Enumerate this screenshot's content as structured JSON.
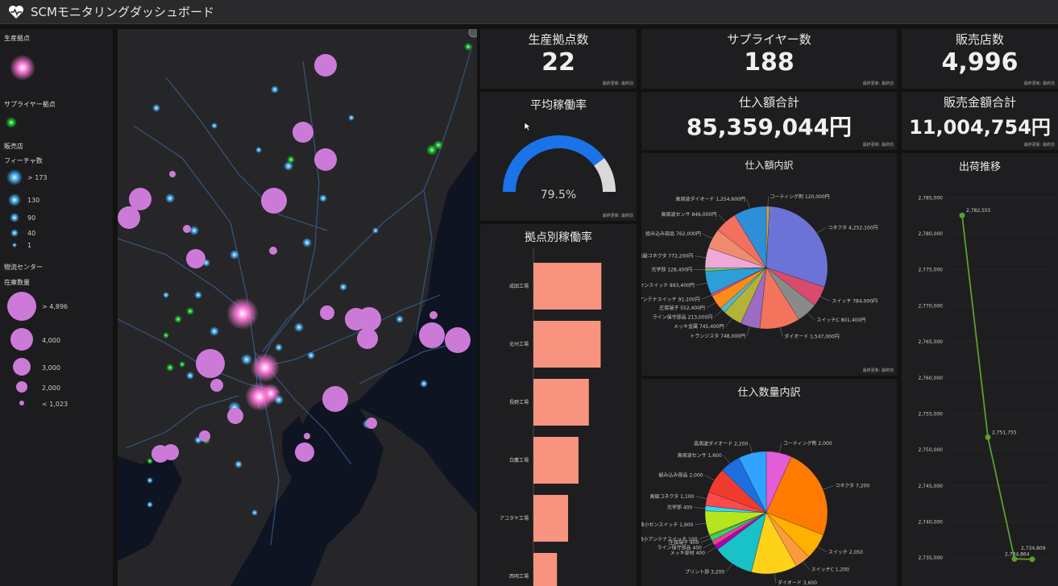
{
  "app": {
    "title": "SCMモニタリングダッシュボード"
  },
  "legend": {
    "production_title": "生産拠点",
    "supplier_title": "サプライヤー拠点",
    "store_title": "販売店",
    "feature_count_title": "フィーチャ数",
    "feature_counts": [
      "> 173",
      "130",
      "90",
      "40",
      "1"
    ],
    "dc_title": "物流センター",
    "stock_title": "在庫数量",
    "stock_counts": [
      "> 4,896",
      "4,000",
      "3,000",
      "2,000",
      "< 1,023"
    ]
  },
  "kpi": {
    "production_label": "生産拠点数",
    "production_value": "22",
    "supplier_label": "サプライヤー数",
    "supplier_value": "188",
    "store_label": "販売店数",
    "store_value": "4,996",
    "purchase_total_label": "仕入額合計",
    "purchase_total_value": "85,359,044円",
    "sales_total_label": "販売金額合計",
    "sales_total_value": "11,004,754円",
    "updated_label": "最終更新: 最終前"
  },
  "gauge": {
    "title": "平均稼働率",
    "value_text": "79.5%",
    "value": 0.795,
    "color": "#1a73e8",
    "rest_color": "#d9d9d9"
  },
  "bar": {
    "title": "拠点別稼働率",
    "color": "#f7937f"
  },
  "pie1": {
    "title": "仕入額内訳"
  },
  "pie2": {
    "title": "仕入数量内訳"
  },
  "line": {
    "title": "出荷推移",
    "color": "#5aa02c"
  },
  "chart_data": [
    {
      "type": "bar",
      "title": "拠点別稼働率",
      "categories": [
        "成田工場",
        "北州工場",
        "長野工場",
        "白鷹工場",
        "アユタヤ工場",
        "西明工場"
      ],
      "values": [
        0.98,
        0.97,
        0.8,
        0.65,
        0.5,
        0.34
      ]
    },
    {
      "type": "pie",
      "title": "仕入額内訳",
      "slices": [
        {
          "label": "コーティング剤",
          "value": 120000,
          "value_text": "120,000円",
          "color": "#c8a84b"
        },
        {
          "label": "コネクタ",
          "value": 4252100,
          "value_text": "4,252,100円",
          "color": "#6b74d6"
        },
        {
          "label": "スイッチ",
          "value": 784000,
          "value_text": "784,000円",
          "color": "#d84b6e"
        },
        {
          "label": "スイッチC",
          "value": 801400,
          "value_text": "801,400円",
          "color": "#8a8a8a"
        },
        {
          "label": "ダイオード",
          "value": 1547000,
          "value_text": "1,547,000円",
          "color": "#f3745c"
        },
        {
          "label": "トランジスタ",
          "value": 748000,
          "value_text": "748,000円",
          "color": "#9b6cc2"
        },
        {
          "label": "メッキ金属",
          "value": 745400,
          "value_text": "745,400円",
          "color": "#b3b33a"
        },
        {
          "label": "ライン保守部品",
          "value": 213000,
          "value_text": "213,000円",
          "color": "#56b4c9"
        },
        {
          "label": "圧接端子",
          "value": 552400,
          "value_text": "552,400円",
          "color": "#ff8c1a"
        },
        {
          "label": "微小アンテナスイッチ",
          "value": 91100,
          "value_text": "91,100円",
          "color": "#e04f9d"
        },
        {
          "label": "微小センスイッチ",
          "value": 893400,
          "value_text": "893,400円",
          "color": "#2c9fd6"
        },
        {
          "label": "光学部",
          "value": 128400,
          "value_text": "128,400円",
          "color": "#78c178"
        },
        {
          "label": "高級コネクタ",
          "value": 772200,
          "value_text": "772,200円",
          "color": "#f0a8d8"
        },
        {
          "label": "組み込み部品",
          "value": 762000,
          "value_text": "762,000円",
          "color": "#ef8b6e"
        },
        {
          "label": "高周波センサ",
          "value": 846000,
          "value_text": "846,000円",
          "color": "#f36f5f"
        },
        {
          "label": "高周波ダイオード",
          "value": 1254600,
          "value_text": "1,254,600円",
          "color": "#2e8fd9"
        }
      ]
    },
    {
      "type": "pie",
      "title": "仕入数量内訳",
      "slices": [
        {
          "label": "コーティング剤",
          "value": 2000,
          "value_text": "2,000",
          "color": "#e35dd6"
        },
        {
          "label": "コネクタ",
          "value": 7200,
          "value_text": "7,200",
          "color": "#ff7a00"
        },
        {
          "label": "スイッチ",
          "value": 2050,
          "value_text": "2,050",
          "color": "#ffb000"
        },
        {
          "label": "スイッチC",
          "value": 1200,
          "value_text": "1,200",
          "color": "#ff9a3c"
        },
        {
          "label": "ダイオード",
          "value": 3600,
          "value_text": "3,600",
          "color": "#ffd21a"
        },
        {
          "label": "プリント部",
          "value": 3200,
          "value_text": "3,200",
          "color": "#18c2c7"
        },
        {
          "label": "メッキ部材",
          "value": 400,
          "value_text": "400",
          "color": "#b000b0"
        },
        {
          "label": "ライン保守部品",
          "value": 400,
          "value_text": "400",
          "color": "#e84393"
        },
        {
          "label": "圧接端子",
          "value": 400,
          "value_text": "400",
          "color": "#3ad06c"
        },
        {
          "label": "微小アンテナスイッチ",
          "value": 100,
          "value_text": "100",
          "color": "#7ed321"
        },
        {
          "label": "微小センスイッチ",
          "value": 1900,
          "value_text": "1,900",
          "color": "#b6e51f"
        },
        {
          "label": "光学部",
          "value": 400,
          "value_text": "400",
          "color": "#34d6ff"
        },
        {
          "label": "高級コネクタ",
          "value": 1100,
          "value_text": "1,100",
          "color": "#ff4a4a"
        },
        {
          "label": "組み込み部品",
          "value": 2000,
          "value_text": "2,000",
          "color": "#f03c2e"
        },
        {
          "label": "高周波センサ",
          "value": 1600,
          "value_text": "1,600",
          "color": "#1d6fe0"
        },
        {
          "label": "高周波ダイオード",
          "value": 2200,
          "value_text": "2,200",
          "color": "#2fa3ff"
        }
      ]
    },
    {
      "type": "line",
      "title": "出荷推移",
      "y_ticks": [
        "2,785,000",
        "2,780,000",
        "2,775,000",
        "2,770,000",
        "2,765,000",
        "2,760,000",
        "2,755,000",
        "2,750,000",
        "2,745,000",
        "2,740,000",
        "2,735,000"
      ],
      "ylim": [
        2733000,
        2786500
      ],
      "points": [
        {
          "y": 2782555,
          "label": "2,782,555"
        },
        {
          "y": 2751755,
          "label": "2,751,755"
        },
        {
          "y": 2734864,
          "label": "2,734,864"
        },
        {
          "y": 2734809,
          "label": "2,734,809"
        }
      ]
    }
  ]
}
